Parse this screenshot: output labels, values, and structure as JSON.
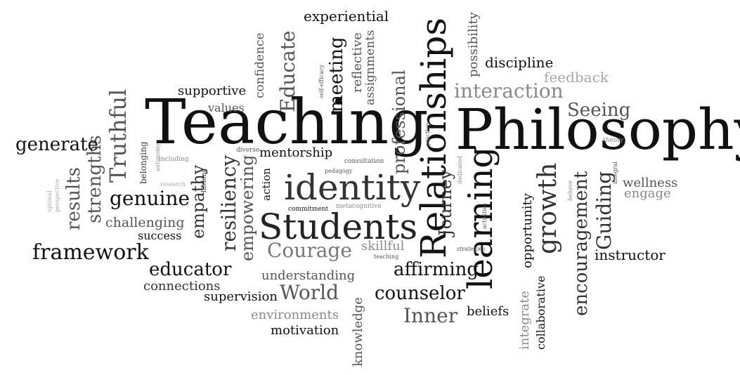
{
  "colors": {
    "background": "#ffffff",
    "dark": "#111111",
    "mid": "#555555",
    "light": "#8a8a8a",
    "faint": "#a8a8a8"
  },
  "words": {
    "teaching": "Teaching",
    "philosophy": "Philosophy",
    "relationships": "Relationships",
    "students": "Students",
    "identity": "identity",
    "learning": "learning",
    "truthful": "Truthful",
    "strengths": "strengths",
    "results": "results",
    "generate": "generate",
    "genuine": "genuine",
    "framework": "framework",
    "challenging": "challenging",
    "success": "success",
    "educator": "educator",
    "connections": "connections",
    "empathy": "empathy",
    "resiliency": "resiliency",
    "empowering": "empowering",
    "courage": "Courage",
    "understanding": "understanding",
    "supervision": "supervision",
    "world": "World",
    "environments": "environments",
    "motivation": "motivation",
    "knowledge": "knowledge",
    "inner": "Inner",
    "beliefs": "beliefs",
    "counselor": "counselor",
    "affirming": "affirming",
    "journey": "Journey",
    "professional": "professional",
    "educate": "Educate",
    "meeting": "meeting",
    "experiential": "experiential",
    "reflective": "reflective",
    "assignments": "assignments",
    "confidence": "confidence",
    "supportive": "supportive",
    "values": "values",
    "belonging": "belonging",
    "mentorship": "mentorship",
    "action": "action",
    "diverse": "diverse",
    "consultation": "consultation",
    "pedagogy": "pedagogy",
    "commitment": "commitment",
    "metacognitive": "metacognitive",
    "skillful": "skillful",
    "teaching_small": "teaching",
    "strategies": "strategies",
    "practice": "practice",
    "dedicated": "dedicated",
    "activities": "activities",
    "interaction": "interaction",
    "feedback": "feedback",
    "discipline": "discipline",
    "possibility": "possibility",
    "seeing": "Seeing",
    "growth": "growth",
    "opportunity": "opportunity",
    "collaborative": "collaborative",
    "integrate": "integrate",
    "encouragement": "encouragement",
    "guiding": "Guiding",
    "instructor": "instructor",
    "wellness": "wellness",
    "engage": "engage",
    "theory": "theory",
    "integral": "integral",
    "believe": "believe",
    "self_efficacy": "self-efficacy",
    "autonomy": "autonomy",
    "including": "including",
    "research": "research",
    "lifelong": "lifelong",
    "optimal": "optimal",
    "perspective": "perspective"
  }
}
